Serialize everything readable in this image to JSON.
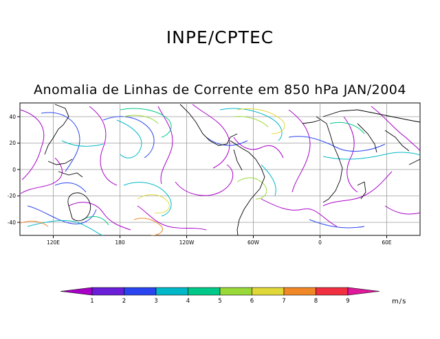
{
  "header": {
    "title": "INPE/CPTEC",
    "subtitle": "Anomalia de Linhas de Corrente em 850 hPa JAN/2004"
  },
  "map": {
    "lat_ticks": [
      "40",
      "20",
      "0",
      "-20",
      "-40"
    ],
    "lon_ticks": [
      "120E",
      "180",
      "120W",
      "60W",
      "0",
      "60E"
    ],
    "lat_range": [
      -50,
      50
    ],
    "lon_range": [
      90,
      450
    ]
  },
  "colorbar": {
    "labels": [
      "1",
      "2",
      "3",
      "4",
      "5",
      "6",
      "7",
      "8",
      "9"
    ],
    "colors": [
      "#a800c8",
      "#6a1ed8",
      "#2a44f0",
      "#00b8c8",
      "#00c888",
      "#98d838",
      "#e0d838",
      "#f08828",
      "#f03040",
      "#e0189c"
    ],
    "unit": "m/s"
  }
}
